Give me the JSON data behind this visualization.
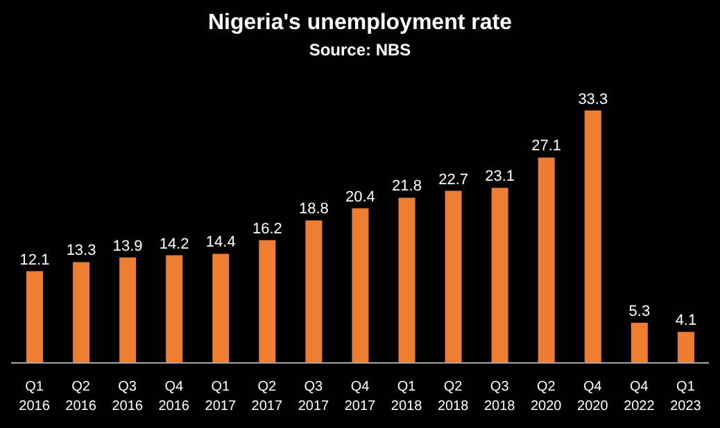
{
  "chart_data": {
    "type": "bar",
    "title": "Nigeria's unemployment rate",
    "subtitle": "Source: NBS",
    "categories": [
      "Q1 2016",
      "Q2 2016",
      "Q3 2016",
      "Q4 2016",
      "Q1 2017",
      "Q2 2017",
      "Q3 2017",
      "Q4 2017",
      "Q1 2018",
      "Q2 2018",
      "Q3 2018",
      "Q2 2020",
      "Q4 2020",
      "Q4 2022",
      "Q1 2023"
    ],
    "values": [
      12.1,
      13.3,
      13.9,
      14.2,
      14.4,
      16.2,
      18.8,
      20.4,
      21.8,
      22.7,
      23.1,
      27.1,
      33.3,
      5.3,
      4.1
    ],
    "color": "#ed7d31",
    "data_labels": true
  }
}
